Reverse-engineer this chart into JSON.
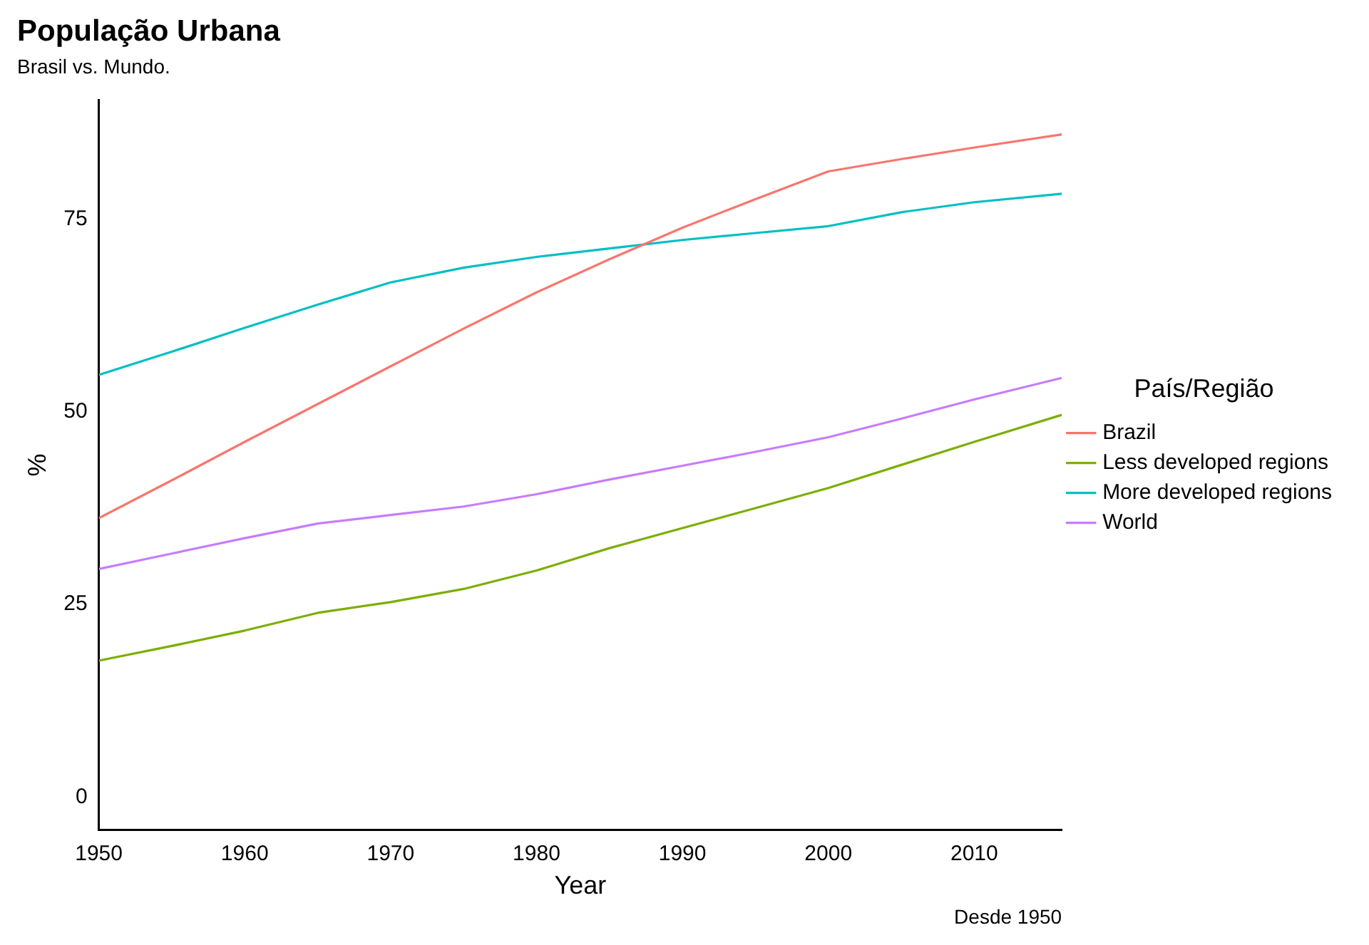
{
  "chart_data": {
    "type": "line",
    "title": "População Urbana",
    "subtitle": "Brasil vs. Mundo.",
    "xlabel": "Year",
    "ylabel": "%",
    "legend_title": "País/Região",
    "annotations": [
      "Desde 1950"
    ],
    "x": [
      1950,
      1955,
      1960,
      1965,
      1970,
      1975,
      1980,
      1985,
      1990,
      1995,
      2000,
      2005,
      2010,
      2016
    ],
    "series": [
      {
        "name": "Brazil",
        "color": "#f8766d",
        "values": [
          36.2,
          41.1,
          46.1,
          51.0,
          55.9,
          60.8,
          65.5,
          69.8,
          73.9,
          77.6,
          81.2,
          82.8,
          84.3,
          86.0
        ]
      },
      {
        "name": "Less developed regions",
        "color": "#7cae00",
        "values": [
          17.7,
          19.6,
          21.6,
          23.9,
          25.3,
          27.0,
          29.4,
          32.3,
          34.9,
          37.5,
          40.1,
          43.1,
          46.1,
          49.6
        ]
      },
      {
        "name": "More developed regions",
        "color": "#00bfc4",
        "values": [
          54.8,
          57.8,
          60.9,
          63.9,
          66.8,
          68.7,
          70.1,
          71.2,
          72.3,
          73.2,
          74.1,
          75.9,
          77.2,
          78.3
        ]
      },
      {
        "name": "World",
        "color": "#c77cff",
        "values": [
          29.6,
          31.6,
          33.6,
          35.5,
          36.6,
          37.7,
          39.3,
          41.2,
          43.0,
          44.8,
          46.7,
          49.1,
          51.6,
          54.4
        ]
      }
    ],
    "xlim": [
      1950,
      2016
    ],
    "xticks": [
      1950,
      1960,
      1970,
      1980,
      1990,
      2000,
      2010
    ],
    "ylim": [
      -4.3,
      90.5
    ],
    "yticks": [
      0,
      25,
      50,
      75
    ],
    "grid": false,
    "legend": "right",
    "marker": "none",
    "line_style": "solid"
  }
}
